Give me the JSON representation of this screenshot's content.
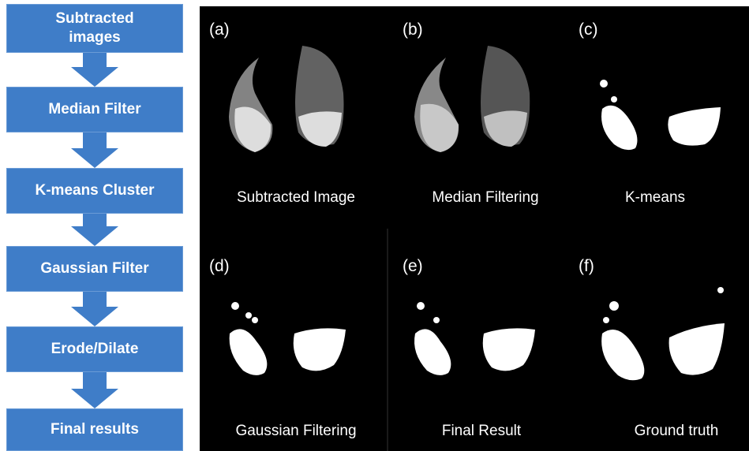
{
  "flow": {
    "steps": [
      "Subtracted images",
      "Median Filter",
      "K-means Cluster",
      "Gaussian Filter",
      "Erode/Dilate",
      "Final results"
    ]
  },
  "panels": [
    {
      "label": "(a)",
      "caption": "Subtracted Image"
    },
    {
      "label": "(b)",
      "caption": "Median Filtering"
    },
    {
      "label": "(c)",
      "caption": "K-means"
    },
    {
      "label": "(d)",
      "caption": "Gaussian Filtering"
    },
    {
      "label": "(e)",
      "caption": "Final Result"
    },
    {
      "label": "(f)",
      "caption": "Ground truth"
    }
  ]
}
